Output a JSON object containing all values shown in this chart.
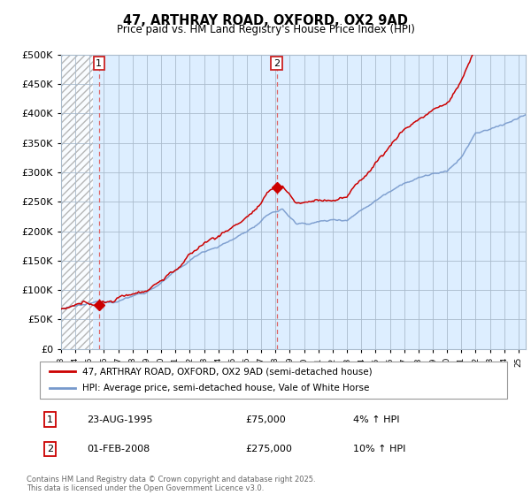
{
  "title": "47, ARTHRAY ROAD, OXFORD, OX2 9AD",
  "subtitle": "Price paid vs. HM Land Registry's House Price Index (HPI)",
  "legend_label_red": "47, ARTHRAY ROAD, OXFORD, OX2 9AD (semi-detached house)",
  "legend_label_blue": "HPI: Average price, semi-detached house, Vale of White Horse",
  "annotation1_label": "1",
  "annotation1_date": "23-AUG-1995",
  "annotation1_price": "£75,000",
  "annotation1_hpi": "4% ↑ HPI",
  "annotation2_label": "2",
  "annotation2_date": "01-FEB-2008",
  "annotation2_price": "£275,000",
  "annotation2_hpi": "10% ↑ HPI",
  "footer": "Contains HM Land Registry data © Crown copyright and database right 2025.\nThis data is licensed under the Open Government Licence v3.0.",
  "ylim": [
    0,
    500000
  ],
  "yticks": [
    0,
    50000,
    100000,
    150000,
    200000,
    250000,
    300000,
    350000,
    400000,
    450000,
    500000
  ],
  "sale1_year": 1995.65,
  "sale1_price": 75000,
  "sale2_year": 2008.08,
  "sale2_price": 275000,
  "xmin": 1993,
  "xmax": 2025.5,
  "background_color": "#ffffff",
  "plot_bg_color": "#ddeeff",
  "hatch_color": "#bbbbcc",
  "grid_color": "#aabbcc",
  "line_color_red": "#cc0000",
  "line_color_blue": "#7799cc",
  "vline_color": "#dd6666",
  "marker_color": "#cc0000"
}
